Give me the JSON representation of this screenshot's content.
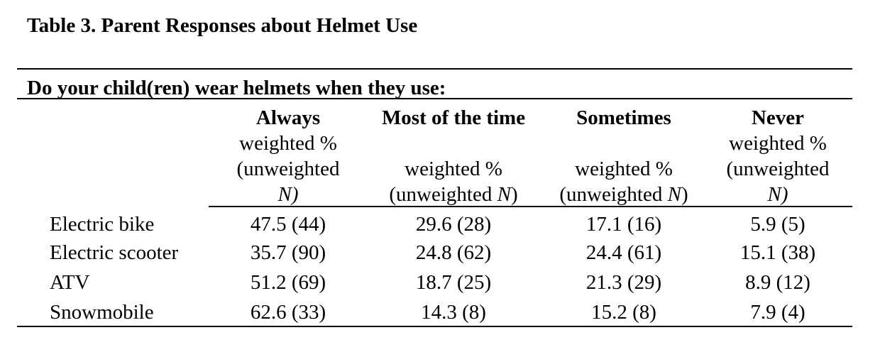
{
  "title": "Table 3. Parent Responses about Helmet Use",
  "question": "Do your child(ren) wear helmets when they use:",
  "columns": [
    {
      "heading": "Always",
      "lines": [
        "weighted %",
        "(unweighted",
        "N)"
      ]
    },
    {
      "heading": "Most of the time",
      "lines": [
        "",
        "weighted %",
        "(unweighted N)"
      ]
    },
    {
      "heading": "Sometimes",
      "lines": [
        "",
        "weighted %",
        "(unweighted N)"
      ]
    },
    {
      "heading": "Never",
      "lines": [
        "weighted %",
        "(unweighted",
        "N)"
      ]
    }
  ],
  "rows": [
    {
      "label": "Electric bike",
      "values": [
        "47.5 (44)",
        "29.6 (28)",
        "17.1 (16)",
        "5.9 (5)"
      ]
    },
    {
      "label": "Electric scooter",
      "values": [
        "35.7 (90)",
        "24.8 (62)",
        "24.4 (61)",
        "15.1 (38)"
      ]
    },
    {
      "label": "ATV",
      "values": [
        "51.2 (69)",
        "18.7 (25)",
        "21.3 (29)",
        "8.9 (12)"
      ]
    },
    {
      "label": "Snowmobile",
      "values": [
        "62.6 (33)",
        "14.3 (8)",
        "15.2 (8)",
        "7.9 (4)"
      ]
    }
  ]
}
